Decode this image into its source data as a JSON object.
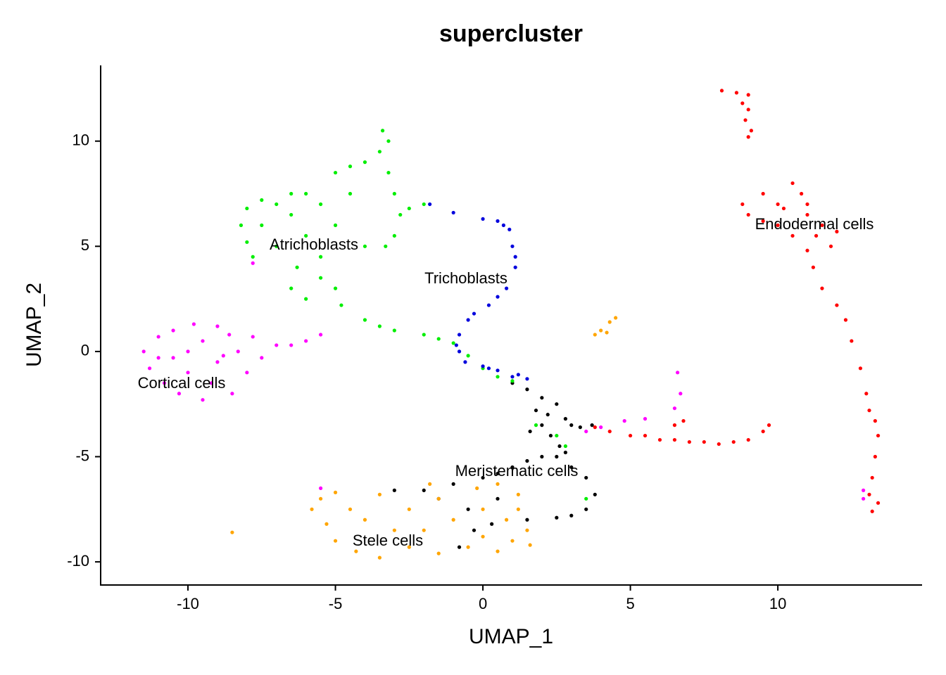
{
  "chart_data": {
    "type": "scatter",
    "title": "supercluster",
    "x_label": "UMAP_1",
    "y_label": "UMAP_2",
    "xlim": [
      -12.96,
      14.89
    ],
    "ylim": [
      -11.1,
      13.6
    ],
    "xticks": [
      -10,
      -5,
      0,
      5,
      10
    ],
    "yticks": [
      -10,
      -5,
      0,
      5,
      10
    ],
    "grid": false,
    "series": [
      {
        "name": "Meristematic cells",
        "color": "#000000",
        "x": [
          1,
          1.5,
          2,
          1.8,
          2.2,
          2.5,
          2.8,
          3,
          3.3,
          2,
          1.6,
          2.3,
          2.6,
          2.8,
          2.5,
          2,
          1.5,
          1,
          0.5,
          0,
          -1,
          -2,
          -3,
          -1.5,
          -0.5,
          -0.3,
          3,
          3.5,
          3.8,
          3.5,
          3,
          2.5,
          1.5,
          0.5,
          0.3,
          -0.8,
          3.7
        ],
        "y": [
          -1.5,
          -1.8,
          -2.2,
          -2.8,
          -3,
          -2.5,
          -3.2,
          -3.5,
          -3.6,
          -3.5,
          -3.8,
          -4,
          -4.5,
          -4.8,
          -5,
          -5,
          -5.2,
          -5.5,
          -5.8,
          -6,
          -6.3,
          -6.6,
          -6.6,
          -7,
          -7.5,
          -8.5,
          -5.5,
          -6,
          -6.8,
          -7.5,
          -7.8,
          -7.9,
          -8,
          -7,
          -8.2,
          -9.3,
          -3.5
        ]
      },
      {
        "name": "Atrichoblasts",
        "color": "#00ee00",
        "x": [
          -3.4,
          -3.2,
          -3.5,
          -4,
          -4.5,
          -5,
          -3.2,
          -3,
          -2.8,
          -3,
          -3.3,
          -4,
          -5,
          -5.5,
          -6,
          -6.5,
          -7,
          -7.5,
          -8,
          -8.2,
          -8,
          -7.8,
          -7,
          -6.5,
          -6,
          -5.5,
          -6.3,
          -6.5,
          -6,
          -5.5,
          -5,
          -4.8,
          -4,
          -3.5,
          -3,
          -2,
          -1.5,
          -1,
          -0.5,
          0,
          0.5,
          1,
          -2,
          -2.5,
          -4.5,
          -7.5,
          2.5,
          2.8,
          1.8,
          3.5
        ],
        "y": [
          10.5,
          10,
          9.5,
          9,
          8.8,
          8.5,
          8.5,
          7.5,
          6.5,
          5.5,
          5,
          5,
          6,
          7,
          7.5,
          7.5,
          7,
          7.2,
          6.8,
          6,
          5.2,
          4.5,
          5,
          6.5,
          5.5,
          4.5,
          4,
          3,
          2.5,
          3.5,
          3,
          2.2,
          1.5,
          1.2,
          1,
          0.8,
          0.6,
          0.4,
          -0.2,
          -0.8,
          -1.2,
          -1.4,
          7,
          6.8,
          7.5,
          6,
          -4,
          -4.5,
          -3.5,
          -7
        ]
      },
      {
        "name": "Trichoblasts",
        "color": "#0000dd",
        "x": [
          -1.8,
          -1,
          0,
          0.7,
          1,
          1.1,
          0.8,
          0.2,
          -0.5,
          -0.8,
          -0.8,
          -0.6,
          0,
          0.5,
          1,
          1.5,
          0.5,
          0.9,
          1.1,
          0.5,
          -0.3,
          -0.9,
          0.2,
          1.2
        ],
        "y": [
          7,
          6.6,
          6.3,
          6,
          5,
          4,
          3,
          2.2,
          1.5,
          0.8,
          0,
          -0.5,
          -0.7,
          -0.9,
          -1.2,
          -1.3,
          6.2,
          5.8,
          4.5,
          2.6,
          1.8,
          0.3,
          -0.8,
          -1.1
        ]
      },
      {
        "name": "Cortical cells",
        "color": "#ff00ff",
        "x": [
          -11.5,
          -11.3,
          -11,
          -10.8,
          -10.5,
          -10.3,
          -10,
          -10,
          -9.8,
          -9.5,
          -9.5,
          -9.2,
          -9,
          -9,
          -8.6,
          -8.5,
          -8.3,
          -8,
          -7.8,
          -7.5,
          -7,
          -6.5,
          -6,
          -5.5,
          -10.5,
          -11,
          -8.8,
          6.6,
          6.7,
          6.5,
          5.5,
          4.8,
          4,
          3.5,
          -5.5,
          12.9,
          12.9,
          -7.8
        ],
        "y": [
          0,
          -0.8,
          0.7,
          -1.5,
          1,
          -2,
          0,
          -1,
          1.3,
          -2.3,
          0.5,
          -1.5,
          1.2,
          -0.5,
          0.8,
          -2,
          0,
          -1,
          0.7,
          -0.3,
          0.3,
          0.3,
          0.5,
          0.8,
          -0.3,
          -0.3,
          -0.2,
          -1,
          -2,
          -2.7,
          -3.2,
          -3.3,
          -3.6,
          -3.8,
          -6.5,
          -6.6,
          -7,
          4.2
        ]
      },
      {
        "name": "Endodermal cells",
        "color": "#ff0000",
        "x": [
          8.1,
          8.6,
          9,
          9,
          8.9,
          9.1,
          9,
          8.8,
          8.8,
          9,
          9.5,
          10,
          10.5,
          10.8,
          11,
          11.5,
          12,
          11.8,
          11,
          10.5,
          10,
          9.5,
          10.2,
          11,
          11.3,
          11.2,
          11.5,
          12,
          12.3,
          12.5,
          12.8,
          13,
          13.1,
          13.3,
          13.4,
          13.3,
          13.2,
          13.1,
          13.4,
          13.2,
          3.8,
          4.3,
          5,
          5.5,
          6,
          6.5,
          7,
          7.5,
          8,
          8.5,
          9,
          9.5,
          9.7,
          6.5,
          6.8
        ],
        "y": [
          12.4,
          12.3,
          12.2,
          11.5,
          11,
          10.5,
          10.2,
          11.8,
          7,
          6.5,
          7.5,
          7,
          8,
          7.5,
          6.5,
          6,
          5.7,
          5,
          4.8,
          5.5,
          6,
          6.2,
          6.8,
          7,
          5.5,
          4,
          3,
          2.2,
          1.5,
          0.5,
          -0.8,
          -2,
          -2.8,
          -3.3,
          -4,
          -5,
          -6,
          -6.8,
          -7.2,
          -7.6,
          -3.6,
          -3.8,
          -4,
          -4,
          -4.2,
          -4.2,
          -4.3,
          -4.3,
          -4.4,
          -4.3,
          -4.2,
          -3.8,
          -3.5,
          -3.5,
          -3.3
        ]
      },
      {
        "name": "Stele cells",
        "color": "#ffa500",
        "x": [
          -5.8,
          -5.5,
          -5.3,
          -5,
          -5,
          -4.5,
          -4.3,
          -4,
          -3.5,
          -3.5,
          -3,
          -2.5,
          -2.5,
          -2,
          -1.5,
          -1.5,
          -1,
          -0.5,
          0,
          0,
          0.5,
          0.8,
          1,
          1.2,
          1.5,
          1.6,
          1.2,
          -0.2,
          0.5,
          -1.8,
          4,
          4.3,
          4.5,
          4.2,
          3.8,
          -8.5
        ],
        "y": [
          -7.5,
          -7,
          -8.2,
          -6.7,
          -9,
          -7.5,
          -9.5,
          -8,
          -6.8,
          -9.8,
          -8.5,
          -7.5,
          -9.3,
          -8.5,
          -9.6,
          -7,
          -8,
          -9.3,
          -7.5,
          -8.8,
          -9.5,
          -8,
          -9,
          -6.8,
          -8.5,
          -9.2,
          -7.5,
          -6.5,
          -6.3,
          -6.3,
          1,
          1.4,
          1.6,
          0.9,
          0.8,
          -8.6
        ]
      }
    ]
  }
}
